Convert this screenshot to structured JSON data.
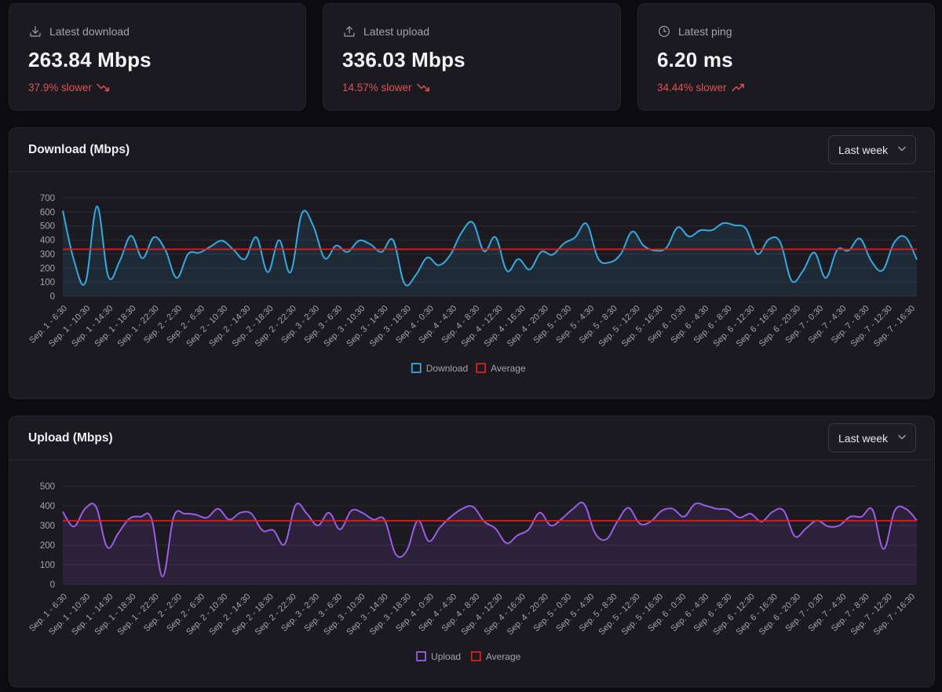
{
  "colors": {
    "download": "#35a9e0",
    "upload": "#9b5de5",
    "average": "#d9211d",
    "negative": "#e05252"
  },
  "stats": [
    {
      "label": "Latest download",
      "icon": "download-icon",
      "value": "263.84 Mbps",
      "change": "37.9% slower",
      "trend": "trending-down-icon"
    },
    {
      "label": "Latest upload",
      "icon": "upload-icon",
      "value": "336.03 Mbps",
      "change": "14.57% slower",
      "trend": "trending-down-icon"
    },
    {
      "label": "Latest ping",
      "icon": "clock-icon",
      "value": "6.20 ms",
      "change": "34.44% slower",
      "trend": "trending-up-icon"
    }
  ],
  "download_panel": {
    "title": "Download (Mbps)",
    "range": "Last week",
    "chevron_icon": "chevron-down-icon"
  },
  "upload_panel": {
    "title": "Upload (Mbps)",
    "range": "Last week",
    "chevron_icon": "chevron-down-icon"
  },
  "chart_data": [
    {
      "type": "area",
      "title": "Download (Mbps)",
      "ylim": [
        0,
        700
      ],
      "yticks": [
        0,
        100,
        200,
        300,
        400,
        500,
        600,
        700
      ],
      "grid": true,
      "legend": [
        "Download",
        "Average"
      ],
      "legend_position": "bottom",
      "x_tick_labels": [
        "Sep. 1 - 6:30",
        "Sep. 1 - 10:30",
        "Sep. 1 - 14:30",
        "Sep. 1 - 18:30",
        "Sep. 1 - 22:30",
        "Sep. 2 - 2:30",
        "Sep. 2 - 6:30",
        "Sep. 2 - 10:30",
        "Sep. 2 - 14:30",
        "Sep. 2 - 18:30",
        "Sep. 2 - 22:30",
        "Sep. 3 - 2:30",
        "Sep. 3 - 6:30",
        "Sep. 3 - 10:30",
        "Sep. 3 - 14:30",
        "Sep. 3 - 18:30",
        "Sep. 4 - 0:30",
        "Sep. 4 - 4:30",
        "Sep. 4 - 8:30",
        "Sep. 4 - 12:30",
        "Sep. 4 - 16:30",
        "Sep. 4 - 20:30",
        "Sep. 5 - 0:30",
        "Sep. 5 - 4:30",
        "Sep. 5 - 8:30",
        "Sep. 5 - 12:30",
        "Sep. 5 - 16:30",
        "Sep. 6 - 0:30",
        "Sep. 6 - 4:30",
        "Sep. 6 - 8:30",
        "Sep. 6 - 12:30",
        "Sep. 6 - 16:30",
        "Sep. 6 - 20:30",
        "Sep. 7 - 0:30",
        "Sep. 7 - 4:30",
        "Sep. 7 - 8:30",
        "Sep. 7 - 12:30",
        "Sep. 7 - 16:30"
      ],
      "series": [
        {
          "name": "Download",
          "values": [
            610,
            250,
            100,
            640,
            140,
            250,
            430,
            270,
            420,
            330,
            130,
            300,
            310,
            355,
            395,
            330,
            265,
            420,
            170,
            400,
            170,
            590,
            500,
            270,
            360,
            315,
            395,
            370,
            315,
            400,
            90,
            150,
            275,
            220,
            290,
            450,
            525,
            320,
            420,
            180,
            265,
            190,
            315,
            295,
            375,
            420,
            515,
            270,
            240,
            300,
            460,
            360,
            325,
            345,
            490,
            425,
            470,
            470,
            520,
            505,
            480,
            300,
            405,
            385,
            110,
            180,
            310,
            130,
            330,
            325,
            410,
            250,
            185,
            380,
            420,
            260
          ]
        },
        {
          "name": "Average",
          "values": [
            334
          ]
        }
      ]
    },
    {
      "type": "area",
      "title": "Upload (Mbps)",
      "ylim": [
        0,
        500
      ],
      "yticks": [
        0,
        100,
        200,
        300,
        400,
        500
      ],
      "grid": true,
      "legend": [
        "Upload",
        "Average"
      ],
      "legend_position": "bottom",
      "x_tick_labels": [
        "Sep. 1 - 6:30",
        "Sep. 1 - 10:30",
        "Sep. 1 - 14:30",
        "Sep. 1 - 18:30",
        "Sep. 1 - 22:30",
        "Sep. 2 - 2:30",
        "Sep. 2 - 6:30",
        "Sep. 2 - 10:30",
        "Sep. 2 - 14:30",
        "Sep. 2 - 18:30",
        "Sep. 2 - 22:30",
        "Sep. 3 - 2:30",
        "Sep. 3 - 6:30",
        "Sep. 3 - 10:30",
        "Sep. 3 - 14:30",
        "Sep. 3 - 18:30",
        "Sep. 4 - 0:30",
        "Sep. 4 - 4:30",
        "Sep. 4 - 8:30",
        "Sep. 4 - 12:30",
        "Sep. 4 - 16:30",
        "Sep. 4 - 20:30",
        "Sep. 5 - 0:30",
        "Sep. 5 - 4:30",
        "Sep. 5 - 8:30",
        "Sep. 5 - 12:30",
        "Sep. 5 - 16:30",
        "Sep. 6 - 0:30",
        "Sep. 6 - 4:30",
        "Sep. 6 - 8:30",
        "Sep. 6 - 12:30",
        "Sep. 6 - 16:30",
        "Sep. 6 - 20:30",
        "Sep. 7 - 0:30",
        "Sep. 7 - 4:30",
        "Sep. 7 - 8:30",
        "Sep. 7 - 12:30",
        "Sep. 7 - 16:30"
      ],
      "series": [
        {
          "name": "Upload",
          "values": [
            370,
            295,
            385,
            395,
            190,
            260,
            335,
            345,
            335,
            40,
            345,
            360,
            355,
            340,
            385,
            330,
            365,
            360,
            275,
            275,
            205,
            405,
            360,
            300,
            365,
            280,
            375,
            365,
            330,
            330,
            155,
            170,
            325,
            220,
            290,
            345,
            385,
            395,
            320,
            285,
            210,
            250,
            280,
            365,
            300,
            335,
            385,
            410,
            260,
            230,
            320,
            390,
            310,
            320,
            375,
            385,
            345,
            410,
            400,
            385,
            380,
            340,
            360,
            320,
            370,
            375,
            245,
            285,
            325,
            295,
            300,
            345,
            345,
            380,
            180,
            375,
            385,
            325
          ]
        },
        {
          "name": "Average",
          "values": [
            324
          ]
        }
      ]
    }
  ]
}
